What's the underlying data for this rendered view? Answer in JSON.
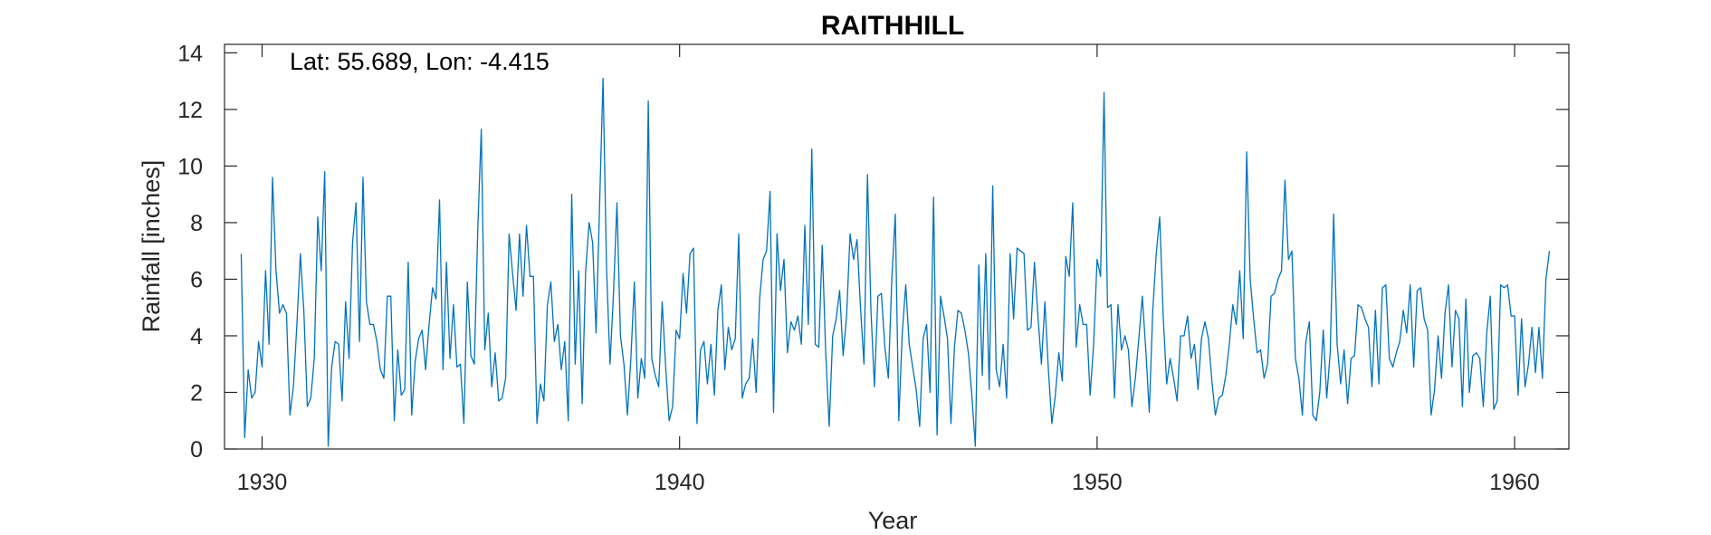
{
  "chart_data": {
    "type": "line",
    "title": "RAITHHILL",
    "xlabel": "Year",
    "ylabel": "Rainfall [inches]",
    "annotation": "Lat: 55.689, Lon: -4.415",
    "xlim": [
      1929.1,
      1961.3
    ],
    "ylim": [
      0,
      14.3
    ],
    "xticks": [
      1930,
      1940,
      1950,
      1960
    ],
    "yticks": [
      0,
      2,
      4,
      6,
      8,
      10,
      12,
      14
    ],
    "grid": false,
    "series_color": "#0072BD",
    "series": [
      {
        "x_start": 1929.5,
        "step": 0.0833333,
        "values": [
          6.9,
          0.4,
          2.8,
          1.8,
          2.0,
          3.8,
          2.9,
          6.3,
          3.7,
          9.6,
          6.3,
          4.8,
          5.1,
          4.8,
          1.2,
          2.2,
          4.4,
          6.9,
          4.9,
          1.5,
          1.8,
          3.2,
          8.2,
          6.3,
          9.8,
          0.1,
          2.9,
          3.8,
          3.7,
          1.7,
          5.2,
          3.2,
          7.3,
          8.7,
          3.8,
          9.6,
          5.2,
          4.4,
          4.4,
          3.8,
          2.8,
          2.5,
          5.4,
          5.4,
          1.0,
          3.5,
          1.9,
          2.1,
          6.6,
          1.2,
          3.1,
          3.9,
          4.2,
          2.8,
          4.4,
          5.7,
          5.3,
          8.8,
          2.8,
          6.6,
          3.2,
          5.1,
          2.9,
          3.0,
          0.9,
          5.9,
          3.3,
          3.0,
          7.8,
          11.3,
          3.5,
          4.8,
          2.2,
          3.4,
          1.7,
          1.8,
          2.5,
          7.6,
          6.2,
          4.9,
          7.6,
          5.4,
          7.9,
          6.1,
          6.1,
          0.9,
          2.3,
          1.7,
          5.1,
          5.9,
          3.8,
          4.4,
          2.8,
          3.8,
          1.0,
          9.0,
          3.0,
          6.3,
          1.6,
          6.3,
          8.0,
          7.3,
          4.1,
          8.6,
          13.1,
          6.4,
          3.0,
          5.5,
          8.7,
          4.0,
          3.0,
          1.2,
          3.2,
          5.9,
          1.8,
          3.2,
          2.5,
          12.3,
          3.2,
          2.6,
          2.2,
          5.2,
          2.9,
          1.0,
          1.5,
          4.2,
          3.9,
          6.2,
          4.8,
          6.9,
          7.1,
          0.9,
          3.5,
          3.8,
          2.3,
          3.7,
          1.9,
          4.9,
          5.8,
          2.8,
          4.3,
          3.5,
          3.9,
          7.6,
          1.8,
          2.3,
          2.5,
          3.9,
          2.0,
          5.3,
          6.7,
          7.0,
          9.1,
          1.3,
          7.6,
          5.6,
          6.7,
          3.4,
          4.5,
          4.2,
          4.7,
          3.7,
          7.9,
          4.4,
          10.6,
          3.7,
          3.6,
          7.2,
          3.4,
          0.8,
          4.0,
          4.6,
          5.6,
          3.3,
          4.7,
          7.6,
          6.7,
          7.4,
          5.0,
          3.0,
          9.7,
          4.9,
          2.2,
          5.4,
          5.5,
          3.6,
          2.5,
          6.0,
          8.3,
          1.0,
          4.1,
          5.8,
          3.7,
          2.9,
          2.1,
          0.8,
          3.9,
          4.4,
          2.0,
          8.9,
          0.5,
          5.4,
          4.7,
          3.9,
          0.9,
          3.6,
          4.9,
          4.8,
          4.2,
          3.4,
          1.9,
          0.1,
          6.5,
          2.6,
          6.9,
          2.1,
          9.3,
          2.8,
          2.2,
          3.7,
          1.8,
          6.9,
          4.6,
          7.1,
          7.0,
          6.9,
          4.2,
          4.3,
          6.6,
          4.7,
          3.0,
          5.2,
          2.8,
          0.9,
          1.9,
          3.4,
          2.4,
          6.8,
          6.1,
          8.7,
          3.6,
          5.1,
          4.4,
          4.4,
          1.9,
          3.7,
          6.7,
          6.1,
          12.6,
          5.0,
          5.1,
          1.8,
          5.1,
          3.5,
          4.0,
          3.5,
          1.5,
          2.5,
          3.9,
          5.4,
          3.5,
          1.3,
          4.9,
          6.9,
          8.2,
          4.7,
          2.3,
          3.2,
          2.5,
          1.7,
          4.0,
          4.0,
          4.7,
          3.2,
          3.7,
          2.1,
          3.9,
          4.5,
          3.9,
          2.4,
          1.2,
          1.8,
          1.9,
          2.6,
          3.7,
          5.1,
          4.4,
          6.3,
          3.9,
          10.5,
          6.0,
          4.6,
          3.4,
          3.5,
          2.5,
          3.0,
          5.4,
          5.5,
          6.0,
          6.3,
          9.5,
          6.7,
          7.0,
          3.2,
          2.5,
          1.2,
          3.8,
          4.5,
          1.2,
          1.0,
          2.0,
          4.2,
          1.8,
          3.4,
          8.3,
          3.7,
          2.3,
          3.5,
          1.6,
          3.2,
          3.3,
          5.1,
          5.0,
          4.6,
          4.3,
          2.2,
          4.9,
          2.3,
          5.7,
          5.8,
          3.2,
          2.9,
          3.4,
          3.8,
          4.9,
          4.1,
          5.8,
          2.9,
          5.6,
          5.7,
          4.6,
          4.2,
          1.2,
          2.1,
          4.0,
          2.5,
          4.8,
          5.8,
          2.9,
          4.9,
          4.6,
          1.5,
          5.3,
          2.0,
          3.3,
          3.4,
          3.2,
          1.5,
          4.1,
          5.4,
          1.4,
          1.7,
          5.8,
          5.7,
          5.8,
          4.7,
          4.7,
          1.9,
          4.6,
          2.2,
          3.0,
          4.3,
          2.7,
          4.3,
          2.5,
          6.0,
          7.0
        ]
      }
    ]
  }
}
